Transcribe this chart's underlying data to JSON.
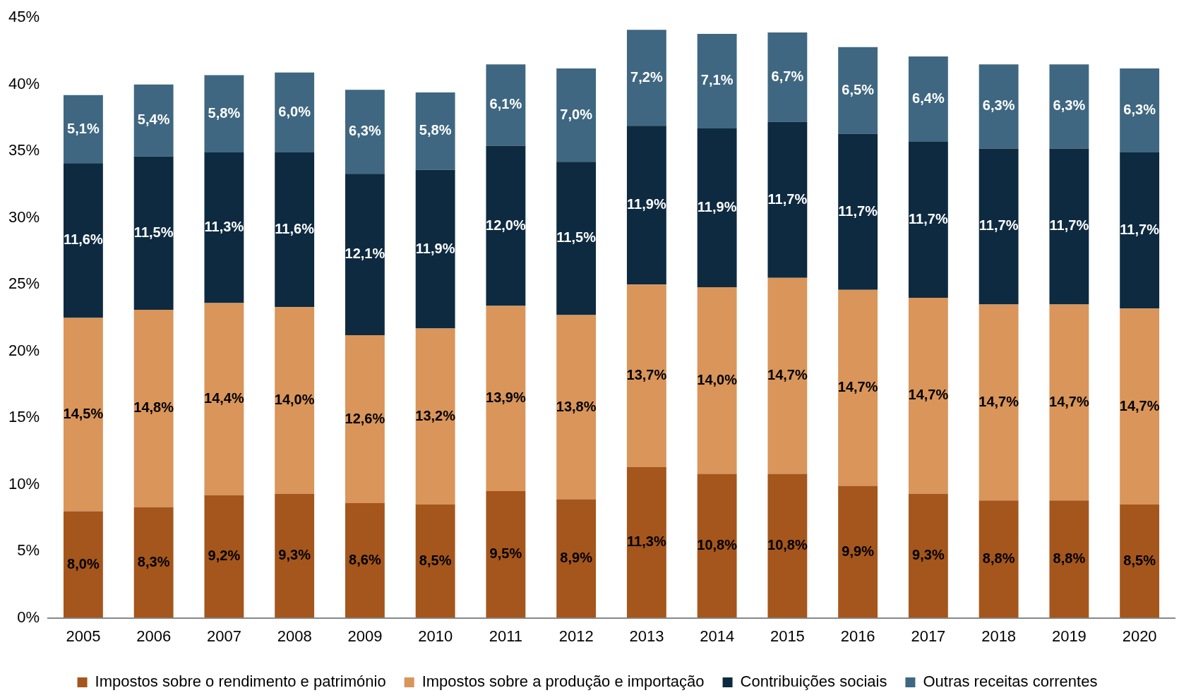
{
  "chart_data": {
    "type": "bar",
    "stacked": true,
    "categories": [
      "2005",
      "2006",
      "2007",
      "2008",
      "2009",
      "2010",
      "2011",
      "2012",
      "2013",
      "2014",
      "2015",
      "2016",
      "2017",
      "2018",
      "2019",
      "2020"
    ],
    "ylim": [
      0,
      45
    ],
    "yticks": [
      {
        "value": 0,
        "label": "0%"
      },
      {
        "value": 5,
        "label": "5%"
      },
      {
        "value": 10,
        "label": "10%"
      },
      {
        "value": 15,
        "label": "15%"
      },
      {
        "value": 20,
        "label": "20%"
      },
      {
        "value": 25,
        "label": "25%"
      },
      {
        "value": 30,
        "label": "30%"
      },
      {
        "value": 35,
        "label": "35%"
      },
      {
        "value": 40,
        "label": "40%"
      },
      {
        "value": 45,
        "label": "45%"
      }
    ],
    "grid": false,
    "legend": "bottom",
    "series": [
      {
        "name": "Impostos sobre o rendimento e património",
        "color": "#a4561c",
        "values": [
          8.0,
          8.3,
          9.2,
          9.3,
          8.6,
          8.5,
          9.5,
          8.9,
          11.3,
          10.8,
          10.8,
          9.9,
          9.3,
          8.8,
          8.8,
          8.5
        ],
        "value_labels": [
          "8,0%",
          "8,3%",
          "9,2%",
          "9,3%",
          "8,6%",
          "8,5%",
          "9,5%",
          "8,9%",
          "11,3%",
          "10,8%",
          "10,8%",
          "9,9%",
          "9,3%",
          "8,8%",
          "8,8%",
          "8,5%"
        ]
      },
      {
        "name": "Impostos sobre a produção e importação",
        "color": "#d9955a",
        "values": [
          14.5,
          14.8,
          14.4,
          14.0,
          12.6,
          13.2,
          13.9,
          13.8,
          13.7,
          14.0,
          14.7,
          14.7,
          14.7,
          14.7,
          14.7,
          14.7
        ],
        "value_labels": [
          "14,5%",
          "14,8%",
          "14,4%",
          "14,0%",
          "12,6%",
          "13,2%",
          "13,9%",
          "13,8%",
          "13,7%",
          "14,0%",
          "14,7%",
          "14,7%",
          "14,7%",
          "14,7%",
          "14,7%",
          "14,7%"
        ]
      },
      {
        "name": "Contribuições sociais",
        "color": "#0d2a40",
        "values": [
          11.6,
          11.5,
          11.3,
          11.6,
          12.1,
          11.9,
          12.0,
          11.5,
          11.9,
          11.9,
          11.7,
          11.7,
          11.7,
          11.7,
          11.7,
          11.7
        ],
        "value_labels": [
          "11,6%",
          "11,5%",
          "11,3%",
          "11,6%",
          "12,1%",
          "11,9%",
          "12,0%",
          "11,5%",
          "11,9%",
          "11,9%",
          "11,7%",
          "11,7%",
          "11,7%",
          "11,7%",
          "11,7%",
          "11,7%"
        ]
      },
      {
        "name": "Outras receitas correntes",
        "color": "#3f6781",
        "values": [
          5.1,
          5.4,
          5.8,
          6.0,
          6.3,
          5.8,
          6.1,
          7.0,
          7.2,
          7.1,
          6.7,
          6.5,
          6.4,
          6.3,
          6.3,
          6.3
        ],
        "value_labels": [
          "5,1%",
          "5,4%",
          "5,8%",
          "6,0%",
          "6,3%",
          "5,8%",
          "6,1%",
          "7,0%",
          "7,2%",
          "7,1%",
          "6,7%",
          "6,5%",
          "6,4%",
          "6,3%",
          "6,3%",
          "6,3%"
        ]
      }
    ]
  }
}
